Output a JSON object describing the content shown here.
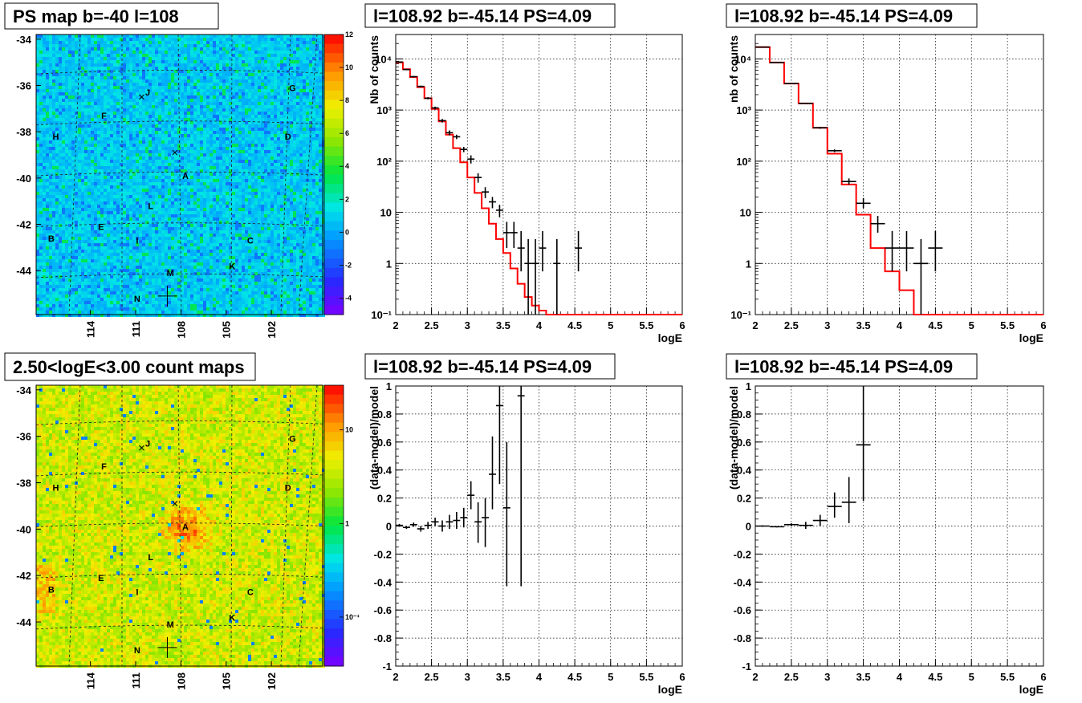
{
  "chart_data": [
    {
      "type": "heatmap",
      "title": "PS map b=-40 l=108",
      "yticks": [
        "-34",
        "-36",
        "-38",
        "-40",
        "-42",
        "-44"
      ],
      "xticks": [
        "114",
        "111",
        "108",
        "105",
        "102"
      ],
      "colorbar": {
        "ticks": [
          "12",
          "10",
          "8",
          "6",
          "4",
          "2",
          "0",
          "-2",
          "-4"
        ],
        "range": [
          -5,
          12
        ],
        "scale": "linear"
      },
      "markers": [
        {
          "label": "J",
          "l": 110.2,
          "b": -36.3
        },
        {
          "label": "G",
          "l": 100.6,
          "b": -36.1
        },
        {
          "label": "F",
          "l": 113.1,
          "b": -37.3
        },
        {
          "label": "H",
          "l": 116.3,
          "b": -38.2
        },
        {
          "label": "D",
          "l": 100.9,
          "b": -38.2
        },
        {
          "label": "A",
          "l": 107.7,
          "b": -39.9
        },
        {
          "label": "L",
          "l": 110.0,
          "b": -41.2
        },
        {
          "label": "E",
          "l": 113.3,
          "b": -42.1
        },
        {
          "label": "B",
          "l": 116.6,
          "b": -42.6
        },
        {
          "label": "I",
          "l": 110.9,
          "b": -42.7
        },
        {
          "label": "C",
          "l": 103.4,
          "b": -42.7
        },
        {
          "label": "K",
          "l": 104.6,
          "b": -43.8
        },
        {
          "label": "M",
          "l": 108.7,
          "b": -44.1
        },
        {
          "label": "N",
          "l": 110.9,
          "b": -45.2
        }
      ]
    },
    {
      "type": "line",
      "title": "l=108.92 b=-45.14 PS=4.09",
      "xlabel": "logE",
      "ylabel": "Nb of counts",
      "xlim": [
        2,
        6
      ],
      "ylim": [
        0.1,
        30000
      ],
      "yscale": "log",
      "grid": true,
      "xticks": [
        "2",
        "2.5",
        "3",
        "3.5",
        "4",
        "4.5",
        "5",
        "5.5",
        "6"
      ],
      "yticks": [
        "10⁻¹",
        "1",
        "10",
        "10²",
        "10³",
        "10⁴"
      ],
      "series": [
        {
          "kind": "histogram",
          "color": "#ff0000",
          "bins": [
            2.0,
            2.1,
            2.2,
            2.3,
            2.4,
            2.5,
            2.6,
            2.7,
            2.8,
            2.9,
            3.0,
            3.1,
            3.2,
            3.3,
            3.4,
            3.5,
            3.6,
            3.7,
            3.8,
            3.9,
            4.0,
            4.1,
            4.2,
            6.0
          ],
          "values": [
            8500,
            6300,
            4400,
            2800,
            1700,
            1050,
            600,
            330,
            180,
            95,
            48,
            24,
            12,
            6,
            3,
            1.6,
            0.8,
            0.4,
            0.22,
            0.15,
            0.12,
            0.1,
            0.1
          ]
        },
        {
          "kind": "points",
          "color": "#000000",
          "x": [
            2.05,
            2.15,
            2.25,
            2.35,
            2.45,
            2.55,
            2.65,
            2.75,
            2.85,
            2.95,
            3.05,
            3.15,
            3.25,
            3.35,
            3.45,
            3.55,
            3.65,
            3.75,
            3.85,
            3.95,
            4.05,
            4.25,
            4.55
          ],
          "y": [
            8700,
            6200,
            4500,
            2900,
            1700,
            1100,
            620,
            360,
            300,
            170,
            110,
            48,
            25,
            16,
            11,
            4,
            4,
            2,
            1,
            1,
            2,
            1,
            2
          ],
          "xerr": 0.05,
          "ylo": [
            8500,
            6000,
            4350,
            2800,
            1620,
            1030,
            570,
            320,
            270,
            150,
            90,
            38,
            19,
            12,
            8,
            2,
            2,
            0.7,
            0.1,
            0.1,
            0.7,
            0.1,
            0.7
          ],
          "yhi": [
            8900,
            6400,
            4650,
            3000,
            1780,
            1170,
            670,
            400,
            330,
            190,
            130,
            58,
            31,
            20,
            14,
            6.5,
            6.5,
            4.3,
            3,
            3,
            4.3,
            3,
            4.3
          ]
        }
      ]
    },
    {
      "type": "line",
      "title": "l=108.92 b=-45.14 PS=4.09",
      "xlabel": "logE",
      "ylabel": "nb of counts",
      "xlim": [
        2,
        6
      ],
      "ylim": [
        0.1,
        30000
      ],
      "yscale": "log",
      "grid": true,
      "xticks": [
        "2",
        "2.5",
        "3",
        "3.5",
        "4",
        "4.5",
        "5",
        "5.5",
        "6"
      ],
      "yticks": [
        "10⁻¹",
        "1",
        "10",
        "10²",
        "10³",
        "10⁴"
      ],
      "series": [
        {
          "kind": "histogram",
          "color": "#ff0000",
          "bins": [
            2.0,
            2.2,
            2.4,
            2.6,
            2.8,
            3.0,
            3.2,
            3.4,
            3.6,
            3.8,
            4.0,
            4.2,
            6.0
          ],
          "values": [
            17000,
            8500,
            3300,
            1350,
            450,
            140,
            35,
            9,
            2,
            0.7,
            0.3,
            0.1
          ]
        },
        {
          "kind": "points",
          "color": "#000000",
          "x": [
            2.1,
            2.3,
            2.5,
            2.7,
            2.9,
            3.1,
            3.3,
            3.5,
            3.7,
            3.9,
            4.1,
            4.3,
            4.5
          ],
          "y": [
            17000,
            8500,
            3300,
            1350,
            450,
            160,
            40,
            15,
            6,
            2,
            2,
            1,
            2
          ],
          "xerr": 0.1,
          "ylo": [
            16800,
            8400,
            3250,
            1320,
            430,
            150,
            35,
            12,
            4,
            0.7,
            0.7,
            0.1,
            0.7
          ],
          "yhi": [
            17200,
            8600,
            3350,
            1380,
            470,
            170,
            46,
            19,
            8.5,
            4.3,
            4.3,
            3,
            4.3
          ]
        }
      ]
    },
    {
      "type": "heatmap",
      "title": "2.50<logE<3.00 count maps",
      "yticks": [
        "-34",
        "-36",
        "-38",
        "-40",
        "-42",
        "-44"
      ],
      "xticks": [
        "114",
        "111",
        "108",
        "105",
        "102"
      ],
      "colorbar": {
        "ticks": [
          "10",
          "1",
          "10⁻¹"
        ],
        "range": [
          0.03,
          30
        ],
        "scale": "log"
      },
      "markers": [
        {
          "label": "J",
          "l": 110.2,
          "b": -36.3
        },
        {
          "label": "G",
          "l": 100.6,
          "b": -36.1
        },
        {
          "label": "F",
          "l": 113.1,
          "b": -37.3
        },
        {
          "label": "H",
          "l": 116.3,
          "b": -38.2
        },
        {
          "label": "D",
          "l": 100.9,
          "b": -38.2
        },
        {
          "label": "A",
          "l": 107.7,
          "b": -39.9
        },
        {
          "label": "L",
          "l": 110.0,
          "b": -41.2
        },
        {
          "label": "E",
          "l": 113.3,
          "b": -42.1
        },
        {
          "label": "B",
          "l": 116.6,
          "b": -42.6
        },
        {
          "label": "I",
          "l": 110.9,
          "b": -42.7
        },
        {
          "label": "C",
          "l": 103.4,
          "b": -42.7
        },
        {
          "label": "K",
          "l": 104.6,
          "b": -43.8
        },
        {
          "label": "M",
          "l": 108.7,
          "b": -44.1
        },
        {
          "label": "N",
          "l": 110.9,
          "b": -45.2
        }
      ]
    },
    {
      "type": "scatter",
      "title": "l=108.92 b=-45.14 PS=4.09",
      "xlabel": "logE",
      "ylabel": "(data-model)/model",
      "xlim": [
        2,
        6
      ],
      "ylim": [
        -1,
        1
      ],
      "grid": true,
      "xticks": [
        "2",
        "2.5",
        "3",
        "3.5",
        "4",
        "4.5",
        "5",
        "5.5",
        "6"
      ],
      "yticks": [
        "-1",
        "-0.8",
        "-0.6",
        "-0.4",
        "-0.2",
        "0",
        "0.2",
        "0.4",
        "0.6",
        "0.8",
        "1"
      ],
      "series": [
        {
          "kind": "points",
          "color": "#000000",
          "x": [
            2.05,
            2.15,
            2.25,
            2.35,
            2.45,
            2.55,
            2.65,
            2.75,
            2.85,
            2.95,
            3.05,
            3.15,
            3.25,
            3.35,
            3.45,
            3.55,
            3.75
          ],
          "y": [
            0.005,
            -0.01,
            0.01,
            -0.02,
            0.005,
            0.03,
            0.0,
            0.03,
            0.04,
            0.06,
            0.22,
            0.03,
            0.06,
            0.37,
            0.86,
            0.13,
            0.93
          ],
          "xerr": 0.05,
          "ylo": [
            -0.005,
            -0.02,
            -0.005,
            -0.04,
            -0.02,
            0.0,
            -0.04,
            -0.02,
            -0.02,
            -0.01,
            0.12,
            -0.12,
            -0.15,
            0.12,
            0.3,
            -0.43,
            -0.43
          ],
          "yhi": [
            0.015,
            0.0,
            0.025,
            0.0,
            0.03,
            0.06,
            0.04,
            0.08,
            0.1,
            0.13,
            0.32,
            0.17,
            0.2,
            0.64,
            1.0,
            0.6,
            1.0
          ]
        }
      ]
    },
    {
      "type": "scatter",
      "title": "l=108.92 b=-45.14 PS=4.09",
      "xlabel": "logE",
      "ylabel": "(data-model)/model",
      "xlim": [
        2,
        6
      ],
      "ylim": [
        -1,
        1
      ],
      "grid": true,
      "xticks": [
        "2",
        "2.5",
        "3",
        "3.5",
        "4",
        "4.5",
        "5",
        "5.5",
        "6"
      ],
      "yticks": [
        "-1",
        "-0.8",
        "-0.6",
        "-0.4",
        "-0.2",
        "0",
        "0.2",
        "0.4",
        "0.6",
        "0.8",
        "1"
      ],
      "series": [
        {
          "kind": "points",
          "color": "#000000",
          "x": [
            2.1,
            2.3,
            2.5,
            2.7,
            2.9,
            3.1,
            3.3,
            3.5
          ],
          "y": [
            0.0,
            -0.005,
            0.01,
            0.005,
            0.04,
            0.14,
            0.17,
            0.58
          ],
          "xerr": 0.1,
          "ylo": [
            -0.005,
            -0.01,
            0.0,
            -0.02,
            0.0,
            0.06,
            0.02,
            0.18
          ],
          "yhi": [
            0.005,
            0.0,
            0.02,
            0.03,
            0.08,
            0.24,
            0.35,
            1.0
          ]
        }
      ]
    }
  ]
}
